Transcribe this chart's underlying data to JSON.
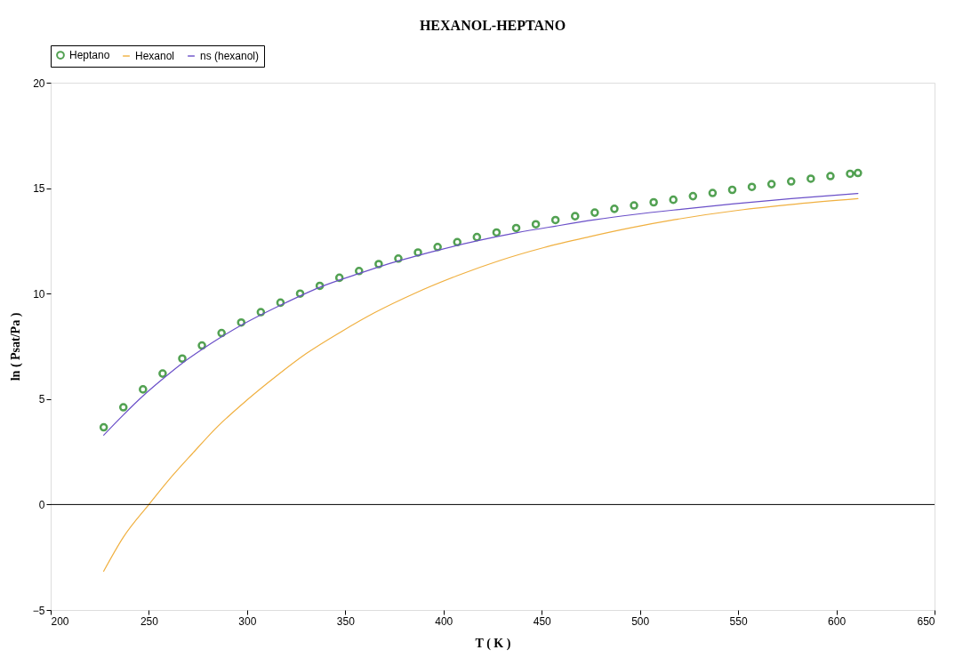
{
  "chart_data": {
    "type": "line",
    "title": "HEXANOL-HEPTANO",
    "xlabel": "T ( K )",
    "ylabel": "ln ( Psat/Pa )",
    "xlim": [
      200,
      650
    ],
    "xticks": [
      200,
      250,
      300,
      350,
      400,
      450,
      500,
      550,
      600,
      650
    ],
    "ylim": [
      -5,
      20
    ],
    "yticks": [
      -5,
      0,
      5,
      10,
      15,
      20
    ],
    "grid": false,
    "legend": "top",
    "ref_lines": [
      {
        "axis": "y",
        "value": 0,
        "color": "#000000"
      }
    ],
    "series": [
      {
        "name": "Heptano",
        "type": "scatter",
        "marker": "circle",
        "color": "#0a7a0a",
        "x": [
          227,
          237,
          247,
          257,
          267,
          277,
          287,
          297,
          307,
          317,
          327,
          337,
          347,
          357,
          367,
          377,
          387,
          397,
          407,
          417,
          427,
          437,
          447,
          457,
          467,
          477,
          487,
          497,
          507,
          517,
          527,
          537,
          547,
          557,
          567,
          577,
          587,
          597,
          607,
          611
        ],
        "values": [
          3.66,
          4.61,
          5.46,
          6.21,
          6.92,
          7.54,
          8.13,
          8.63,
          9.12,
          9.57,
          10.0,
          10.37,
          10.75,
          11.07,
          11.4,
          11.66,
          11.95,
          12.21,
          12.44,
          12.68,
          12.9,
          13.11,
          13.29,
          13.49,
          13.67,
          13.84,
          14.02,
          14.18,
          14.33,
          14.45,
          14.62,
          14.77,
          14.92,
          15.06,
          15.19,
          15.32,
          15.45,
          15.57,
          15.68,
          15.72
        ]
      },
      {
        "name": "Hexanol",
        "marker": "none",
        "line_style": "solid",
        "color": "#f0b040",
        "x": [
          227,
          237,
          250,
          260,
          272,
          285,
          300,
          315,
          330,
          348,
          365,
          385,
          407,
          429,
          451,
          474,
          496,
          518,
          550,
          580,
          611
        ],
        "values": [
          -3.16,
          -1.55,
          0,
          1.15,
          2.4,
          3.7,
          4.96,
          6.1,
          7.15,
          8.2,
          9.1,
          10.0,
          10.85,
          11.58,
          12.18,
          12.69,
          13.13,
          13.51,
          13.95,
          14.25,
          14.5
        ]
      },
      {
        "name": "ns (hexanol)",
        "marker": "none",
        "line_style": "solid",
        "color": "#6a4fc8",
        "x": [
          227,
          237,
          247,
          257,
          267,
          277,
          287,
          297,
          317,
          337,
          357,
          377,
          397,
          417,
          437,
          457,
          477,
          497,
          521,
          547,
          577,
          611
        ],
        "values": [
          3.29,
          4.25,
          5.15,
          5.95,
          6.7,
          7.35,
          7.95,
          8.5,
          9.45,
          10.3,
          10.95,
          11.55,
          12.05,
          12.5,
          12.88,
          13.2,
          13.5,
          13.75,
          14.0,
          14.25,
          14.5,
          14.75
        ]
      }
    ]
  }
}
